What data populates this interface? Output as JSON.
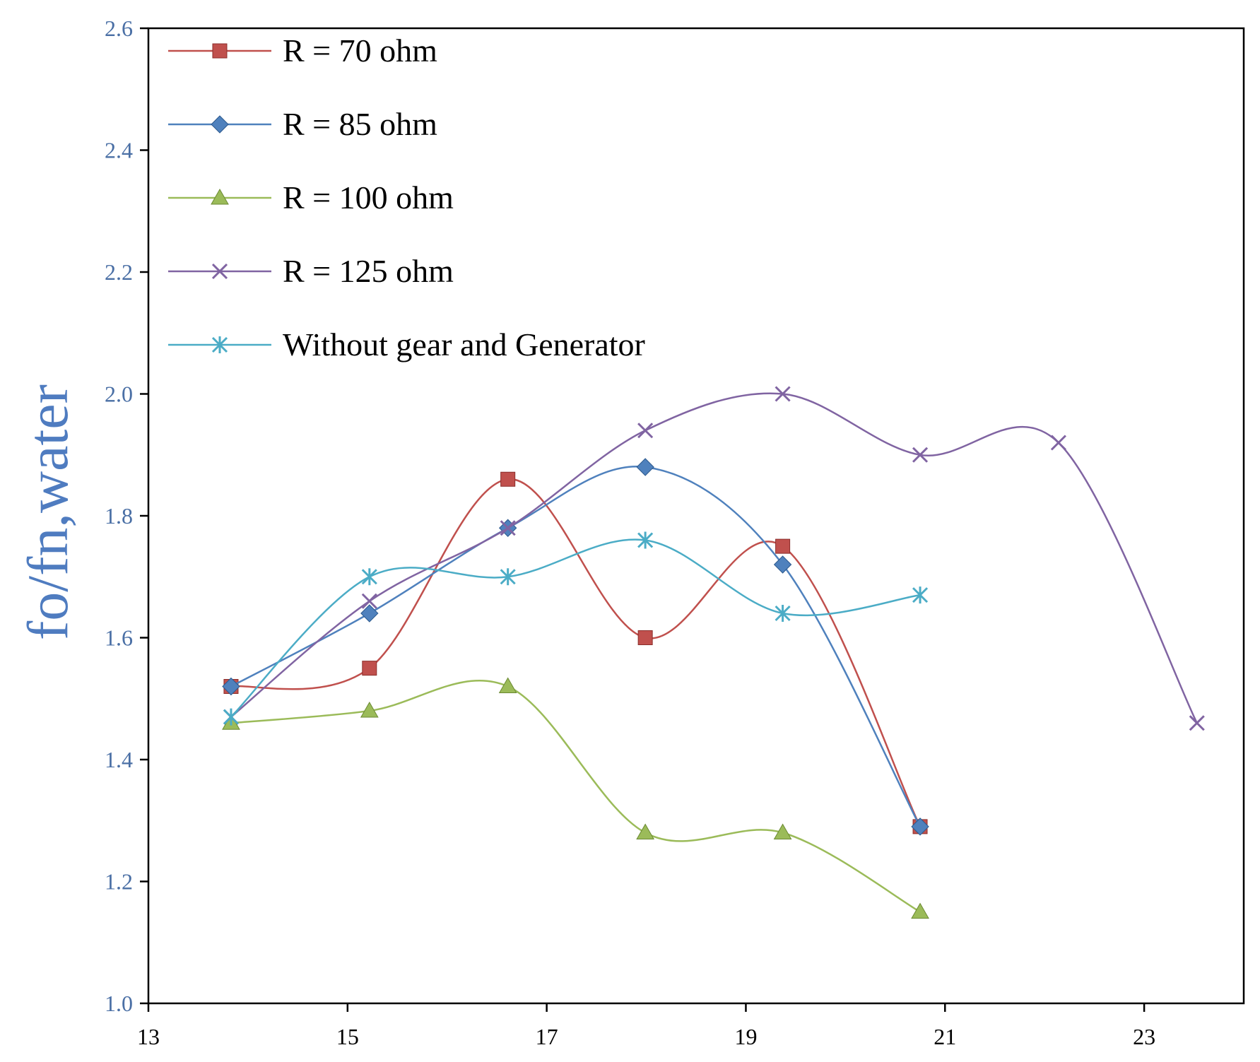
{
  "chart_data": {
    "type": "line",
    "title": "",
    "xlabel": "",
    "ylabel": "fo/fn,water",
    "xlim": [
      13,
      24
    ],
    "ylim": [
      1.0,
      2.6
    ],
    "x_ticks": [
      "13",
      "15",
      "17",
      "19",
      "21",
      "23"
    ],
    "y_ticks": [
      "1.0",
      "1.2",
      "1.4",
      "1.6",
      "1.8",
      "2.0",
      "2.2",
      "2.4",
      "2.6"
    ],
    "grid": false,
    "legend_position": "top-left",
    "smooth": true,
    "series": [
      {
        "name": "R = 70 ohm",
        "color": "#c0504d",
        "marker": "square",
        "x": [
          13.83,
          15.22,
          16.61,
          17.99,
          19.37,
          20.75
        ],
        "y": [
          1.52,
          1.55,
          1.86,
          1.6,
          1.75,
          1.29
        ]
      },
      {
        "name": "R = 85 ohm",
        "color": "#4f81bd",
        "marker": "diamond",
        "x": [
          13.83,
          15.22,
          16.61,
          17.99,
          19.37,
          20.75
        ],
        "y": [
          1.52,
          1.64,
          1.78,
          1.88,
          1.72,
          1.29
        ]
      },
      {
        "name": "R = 100 ohm",
        "color": "#9bbb59",
        "marker": "triangle",
        "x": [
          13.83,
          15.22,
          16.61,
          17.99,
          19.37,
          20.75
        ],
        "y": [
          1.46,
          1.48,
          1.52,
          1.28,
          1.28,
          1.15
        ]
      },
      {
        "name": "R = 125 ohm",
        "color": "#8064a2",
        "marker": "x",
        "x": [
          13.83,
          15.22,
          16.61,
          17.99,
          19.37,
          20.75,
          22.14,
          23.53
        ],
        "y": [
          1.47,
          1.66,
          1.78,
          1.94,
          2.0,
          1.9,
          1.92,
          1.46
        ]
      },
      {
        "name": "Without gear and Generator",
        "color": "#4bacc6",
        "marker": "star",
        "x": [
          13.83,
          15.22,
          16.61,
          17.99,
          19.37,
          20.75
        ],
        "y": [
          1.47,
          1.7,
          1.7,
          1.76,
          1.64,
          1.67
        ]
      }
    ]
  },
  "style": {
    "axis_color": "#000000",
    "tick_label_color": "#4a6fa5",
    "ylabel_color": "#4f7cc0",
    "legend_text_color": "#000000"
  }
}
